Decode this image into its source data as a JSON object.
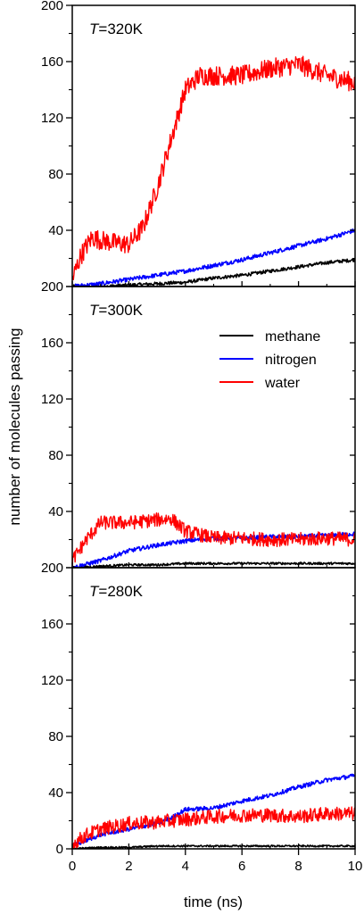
{
  "chart_data": {
    "type": "line",
    "xlabel": "time (ns)",
    "ylabel": "number of molecules passing",
    "xlim": [
      0,
      10
    ],
    "xticks": [
      0,
      2,
      4,
      6,
      8,
      10
    ],
    "ylim": [
      0,
      200
    ],
    "yticks": [
      0,
      40,
      80,
      120,
      160,
      200
    ],
    "legend": {
      "placement": "upper-right of middle panel",
      "entries": [
        {
          "name": "methane",
          "color": "#000000"
        },
        {
          "name": "nitrogen",
          "color": "#0000ff"
        },
        {
          "name": "water",
          "color": "#ff0000"
        }
      ]
    },
    "panels": [
      {
        "label_italic": "T",
        "label_rest": "=320K",
        "series": [
          {
            "name": "methane",
            "color": "#000000",
            "noise": 1.2,
            "x": [
              0,
              1,
              2,
              3,
              4,
              5,
              6,
              7,
              8,
              9,
              10
            ],
            "y": [
              0,
              0,
              1,
              2,
              3,
              6,
              8,
              11,
              14,
              17,
              19
            ]
          },
          {
            "name": "nitrogen",
            "color": "#0000ff",
            "noise": 1.5,
            "x": [
              0,
              1,
              2,
              3,
              4,
              5,
              6,
              7,
              8,
              9,
              10
            ],
            "y": [
              0,
              2,
              5,
              8,
              11,
              15,
              19,
              24,
              29,
              34,
              40
            ]
          },
          {
            "name": "water",
            "color": "#ff0000",
            "noise": 7,
            "x": [
              0,
              0.3,
              0.7,
              1.0,
              1.5,
              2.0,
              2.5,
              3.0,
              3.5,
              4.0,
              4.5,
              5.0,
              6.0,
              7.0,
              8.0,
              9.0,
              10.0
            ],
            "y": [
              5,
              22,
              35,
              33,
              31,
              30,
              42,
              70,
              105,
              140,
              150,
              150,
              150,
              155,
              158,
              150,
              145
            ]
          }
        ]
      },
      {
        "label_italic": "T",
        "label_rest": "=300K",
        "series": [
          {
            "name": "methane",
            "color": "#000000",
            "noise": 0.8,
            "x": [
              0,
              1,
              2,
              3,
              4,
              5,
              6,
              7,
              8,
              9,
              10
            ],
            "y": [
              0,
              1,
              2,
              2,
              3,
              3,
              3,
              3,
              3,
              3,
              3
            ]
          },
          {
            "name": "nitrogen",
            "color": "#0000ff",
            "noise": 1.5,
            "x": [
              0,
              1,
              2,
              3,
              4,
              5,
              6,
              7,
              8,
              9,
              10
            ],
            "y": [
              0,
              5,
              12,
              16,
              19,
              21,
              21,
              22,
              22,
              23,
              24
            ]
          },
          {
            "name": "water",
            "color": "#ff0000",
            "noise": 5,
            "x": [
              0,
              0.5,
              1.0,
              2.0,
              3.0,
              3.5,
              4.0,
              5.0,
              6.0,
              7.0,
              8.0,
              9.0,
              10.0
            ],
            "y": [
              5,
              20,
              32,
              32,
              34,
              35,
              26,
              21,
              21,
              20,
              20,
              21,
              20
            ]
          }
        ]
      },
      {
        "label_italic": "T",
        "label_rest": "=280K",
        "series": [
          {
            "name": "methane",
            "color": "#000000",
            "noise": 0.6,
            "x": [
              0,
              1,
              2,
              3,
              4,
              5,
              6,
              7,
              8,
              9,
              10
            ],
            "y": [
              0,
              1,
              1,
              2,
              2,
              2,
              2,
              2,
              2,
              2,
              2
            ]
          },
          {
            "name": "nitrogen",
            "color": "#0000ff",
            "noise": 1.5,
            "x": [
              0,
              1,
              2,
              3,
              3.5,
              4.0,
              5.0,
              6.0,
              7.0,
              8.0,
              9.0,
              10.0
            ],
            "y": [
              2,
              10,
              14,
              18,
              22,
              28,
              29,
              34,
              38,
              44,
              49,
              52
            ]
          },
          {
            "name": "water",
            "color": "#ff0000",
            "noise": 5,
            "x": [
              0,
              0.5,
              1.0,
              2.0,
              3.0,
              4.0,
              5.0,
              6.0,
              7.0,
              8.0,
              9.0,
              10.0
            ],
            "y": [
              3,
              10,
              14,
              18,
              19,
              21,
              23,
              24,
              24,
              23,
              25,
              25
            ]
          }
        ]
      }
    ]
  }
}
